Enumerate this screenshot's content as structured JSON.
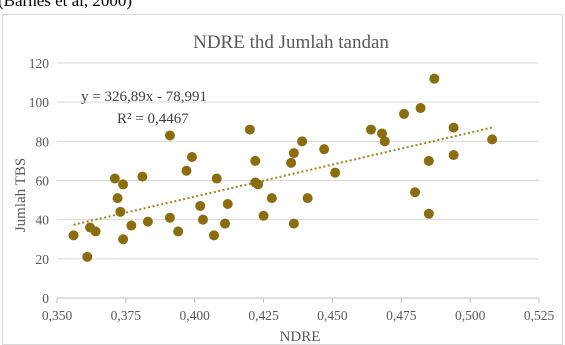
{
  "top_caption": "(Barnes et al, 2000)",
  "chart_data": {
    "type": "scatter",
    "title": "NDRE thd Jumlah tandan",
    "xlabel": "NDRE",
    "ylabel": "Jumlah TBS",
    "xlim": [
      0.35,
      0.525
    ],
    "ylim": [
      0,
      120
    ],
    "x_ticks": [
      0.35,
      0.375,
      0.4,
      0.425,
      0.45,
      0.475,
      0.5,
      0.525
    ],
    "x_tick_labels": [
      "0,350",
      "0,375",
      "0,400",
      "0,425",
      "0,450",
      "0,475",
      "0,500",
      "0,525"
    ],
    "y_ticks": [
      0,
      20,
      40,
      60,
      80,
      100,
      120
    ],
    "y_tick_labels": [
      "0",
      "20",
      "40",
      "60",
      "80",
      "100",
      "120"
    ],
    "grid": "horizontal",
    "legend": "none",
    "marker_color": "#8B6D0F",
    "trendline_color": "#A38416",
    "series": [
      {
        "points": [
          [
            0.356,
            32
          ],
          [
            0.361,
            21
          ],
          [
            0.362,
            36
          ],
          [
            0.364,
            34
          ],
          [
            0.371,
            61
          ],
          [
            0.372,
            51
          ],
          [
            0.373,
            44
          ],
          [
            0.374,
            58
          ],
          [
            0.374,
            30
          ],
          [
            0.377,
            37
          ],
          [
            0.381,
            62
          ],
          [
            0.383,
            39
          ],
          [
            0.391,
            83
          ],
          [
            0.391,
            41
          ],
          [
            0.394,
            34
          ],
          [
            0.397,
            65
          ],
          [
            0.399,
            72
          ],
          [
            0.402,
            47
          ],
          [
            0.403,
            40
          ],
          [
            0.407,
            32
          ],
          [
            0.408,
            61
          ],
          [
            0.411,
            38
          ],
          [
            0.412,
            48
          ],
          [
            0.42,
            86
          ],
          [
            0.422,
            70
          ],
          [
            0.422,
            59
          ],
          [
            0.423,
            58
          ],
          [
            0.425,
            42
          ],
          [
            0.428,
            51
          ],
          [
            0.435,
            69
          ],
          [
            0.436,
            74
          ],
          [
            0.436,
            38
          ],
          [
            0.439,
            80
          ],
          [
            0.441,
            51
          ],
          [
            0.447,
            76
          ],
          [
            0.451,
            64
          ],
          [
            0.464,
            86
          ],
          [
            0.468,
            84
          ],
          [
            0.469,
            80
          ],
          [
            0.476,
            94
          ],
          [
            0.48,
            54
          ],
          [
            0.482,
            97
          ],
          [
            0.485,
            43
          ],
          [
            0.485,
            70
          ],
          [
            0.487,
            112
          ],
          [
            0.494,
            87
          ],
          [
            0.494,
            73
          ],
          [
            0.508,
            81
          ]
        ]
      }
    ],
    "trendline": {
      "slope": 326.89,
      "intercept": -78.991,
      "x_range": [
        0.356,
        0.508
      ],
      "equation_label": "y = 326,89x - 78,991",
      "r2_label": "R² = 0,4467"
    }
  }
}
